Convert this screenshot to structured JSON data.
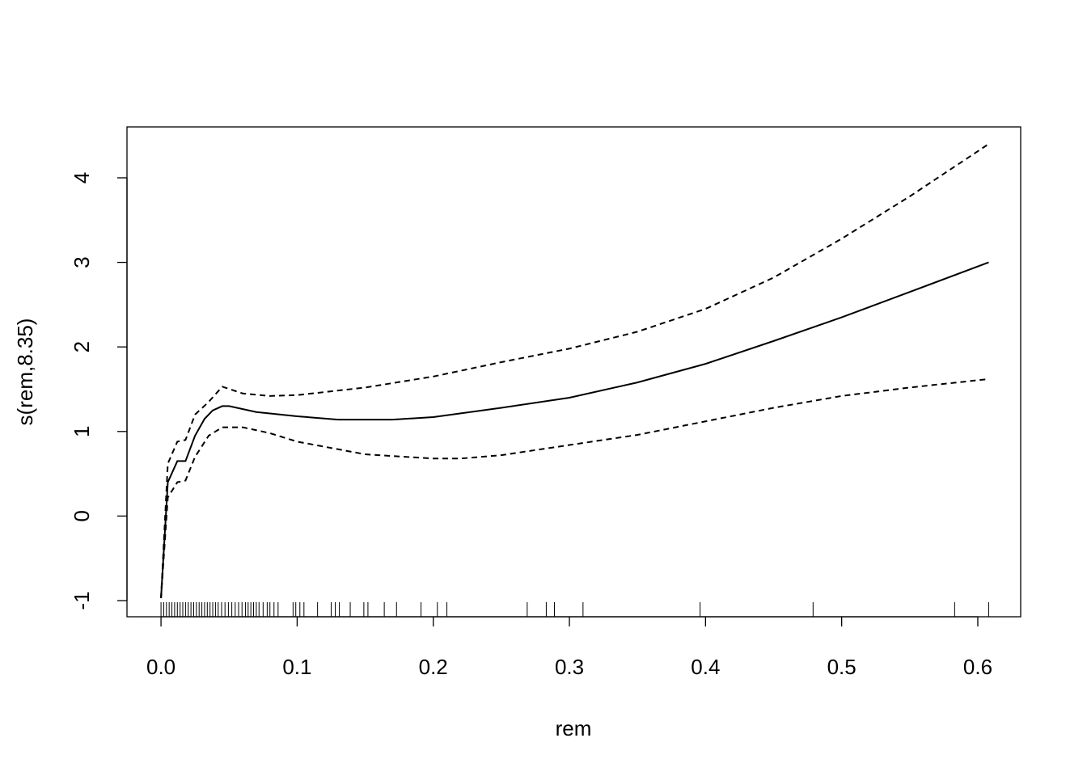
{
  "chart_data": {
    "type": "line",
    "xlabel": "rem",
    "ylabel": "s(rem,8.35)",
    "xlim": [
      -0.025,
      0.6315
    ],
    "ylim": [
      -1.191,
      4.602
    ],
    "xticks": [
      {
        "value": 0,
        "label": "0.0"
      },
      0.1,
      0.2,
      0.3,
      0.4,
      0.5,
      0.6
    ],
    "yticks": [
      -1,
      0,
      1,
      2,
      3,
      4
    ],
    "series": [
      {
        "color": "#000000",
        "dash": false,
        "x": [
          0,
          0.005,
          0.012,
          0.018,
          0.025,
          0.032,
          0.038,
          0.045,
          0.05,
          0.07,
          0.1,
          0.13,
          0.17,
          0.2,
          0.25,
          0.3,
          0.35,
          0.4,
          0.45,
          0.5,
          0.55,
          0.608
        ],
        "values": [
          -0.97,
          0.4,
          0.65,
          0.65,
          0.95,
          1.15,
          1.25,
          1.3,
          1.3,
          1.23,
          1.18,
          1.14,
          1.14,
          1.17,
          1.28,
          1.4,
          1.58,
          1.8,
          2.07,
          2.35,
          2.65,
          3.0
        ]
      },
      {
        "color": "#000000",
        "dash": true,
        "x": [
          0,
          0.005,
          0.012,
          0.018,
          0.025,
          0.035,
          0.045,
          0.06,
          0.08,
          0.1,
          0.15,
          0.2,
          0.25,
          0.3,
          0.35,
          0.4,
          0.45,
          0.5,
          0.55,
          0.608
        ],
        "values": [
          -0.97,
          0.62,
          0.88,
          0.9,
          1.2,
          1.35,
          1.53,
          1.45,
          1.42,
          1.43,
          1.52,
          1.65,
          1.82,
          1.98,
          2.18,
          2.45,
          2.82,
          3.28,
          3.78,
          4.4
        ]
      },
      {
        "color": "#000000",
        "dash": true,
        "x": [
          0,
          0.005,
          0.012,
          0.018,
          0.025,
          0.035,
          0.045,
          0.06,
          0.08,
          0.1,
          0.15,
          0.2,
          0.22,
          0.25,
          0.3,
          0.35,
          0.4,
          0.45,
          0.5,
          0.55,
          0.608
        ],
        "values": [
          -0.97,
          0.22,
          0.4,
          0.42,
          0.7,
          0.95,
          1.05,
          1.05,
          0.98,
          0.88,
          0.73,
          0.68,
          0.68,
          0.72,
          0.84,
          0.96,
          1.12,
          1.28,
          1.42,
          1.52,
          1.62
        ]
      }
    ],
    "rug": [
      0,
      0.002,
      0.004,
      0.006,
      0.008,
      0.01,
      0.012,
      0.014,
      0.016,
      0.018,
      0.02,
      0.022,
      0.024,
      0.026,
      0.028,
      0.03,
      0.032,
      0.034,
      0.036,
      0.038,
      0.04,
      0.042,
      0.0445,
      0.047,
      0.0495,
      0.052,
      0.0545,
      0.057,
      0.0595,
      0.062,
      0.064,
      0.066,
      0.068,
      0.07,
      0.072,
      0.075,
      0.078,
      0.08,
      0.083,
      0.086,
      0.097,
      0.099,
      0.102,
      0.105,
      0.115,
      0.125,
      0.128,
      0.131,
      0.139,
      0.149,
      0.152,
      0.164,
      0.173,
      0.191,
      0.203,
      0.21,
      0.269,
      0.283,
      0.289,
      0.31,
      0.396,
      0.479,
      0.583,
      0.608
    ]
  }
}
